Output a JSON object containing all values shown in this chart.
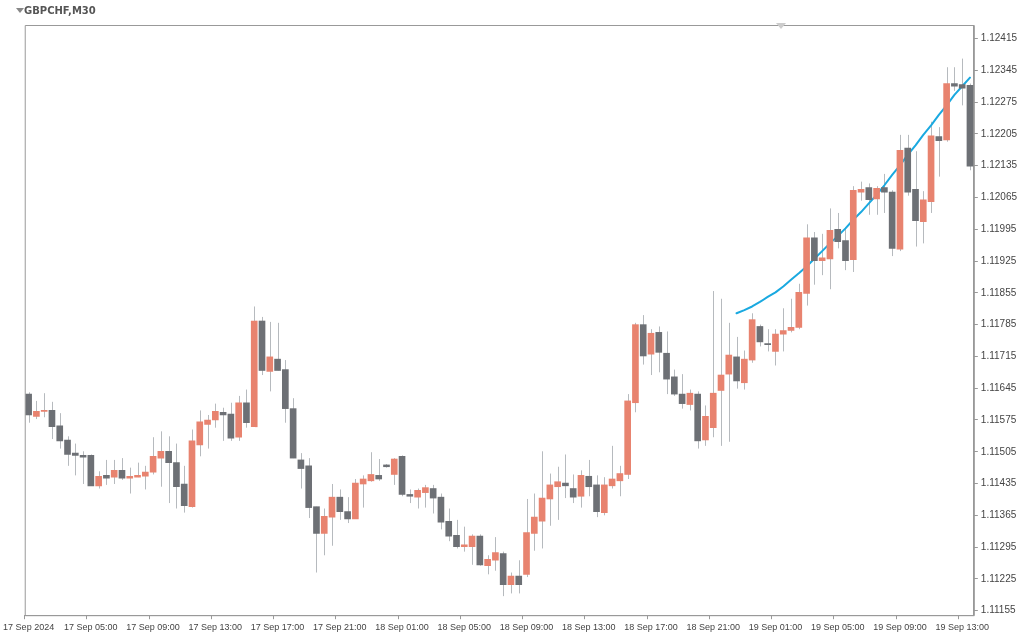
{
  "chart_data": {
    "type": "candlestick",
    "title": "GBPCHF,M30",
    "categories": [
      "17 Sep 2024",
      null,
      null,
      null,
      null,
      null,
      null,
      null,
      "17 Sep 05:00",
      null,
      null,
      null,
      null,
      null,
      null,
      null,
      "17 Sep 09:00",
      null,
      null,
      null,
      null,
      null,
      null,
      null,
      "17 Sep 13:00",
      null,
      null,
      null,
      null,
      null,
      null,
      null,
      "17 Sep 17:00",
      null,
      null,
      null,
      null,
      null,
      null,
      null,
      "17 Sep 21:00",
      null,
      null,
      null,
      null,
      null,
      null,
      null,
      "18 Sep 01:00",
      null,
      null,
      null,
      null,
      null,
      null,
      null,
      "18 Sep 05:00",
      null,
      null,
      null,
      null,
      null,
      null,
      null,
      "18 Sep 09:00",
      null,
      null,
      null,
      null,
      null,
      null,
      null,
      "18 Sep 13:00",
      null,
      null,
      null,
      null,
      null,
      null,
      null,
      "18 Sep 17:00",
      null,
      null,
      null,
      null,
      null,
      null,
      null,
      "18 Sep 21:00",
      null,
      null,
      null,
      null,
      null,
      null,
      null,
      "19 Sep 01:00",
      null,
      null,
      null,
      null,
      null,
      null,
      null,
      "19 Sep 05:00",
      null,
      null,
      null,
      null,
      null,
      null,
      null,
      "19 Sep 09:00",
      null,
      null,
      null,
      null,
      null,
      null,
      null,
      "19 Sep 13:00",
      null
    ],
    "ylim": [
      1.11145,
      1.12445
    ],
    "yticks": [
      1.11155,
      1.11225,
      1.11295,
      1.11365,
      1.11435,
      1.11505,
      1.11575,
      1.11645,
      1.11715,
      1.11785,
      1.11855,
      1.11925,
      1.11995,
      1.12065,
      1.12135,
      1.12205,
      1.12275,
      1.12345,
      1.12415
    ],
    "series": [
      {
        "color": "#b6babe",
        "colors": [
          "#6d7075",
          "#e8836f",
          "#e8836f",
          "#6d7075",
          "#6d7075",
          "#6d7075",
          "#6d7075",
          "#6d7075",
          "#6d7075",
          "#e8836f",
          "#6d7075",
          "#e8836f",
          "#6d7075",
          "#e8836f",
          "#e8836f",
          "#e8836f",
          "#e8836f",
          "#e8836f",
          "#6d7075",
          "#6d7075",
          "#6d7075",
          "#e8836f",
          "#e8836f",
          "#e8836f",
          "#e8836f",
          "#6d7075",
          "#6d7075",
          "#e8836f",
          "#6d7075",
          "#e8836f",
          "#6d7075",
          "#e8836f",
          "#6d7075",
          "#6d7075",
          "#6d7075",
          "#6d7075",
          "#6d7075",
          "#6d7075",
          "#e8836f",
          "#e8836f",
          "#6d7075",
          "#6d7075",
          "#e8836f",
          "#e8836f",
          "#e8836f",
          "#6d7075",
          "#6d7075",
          "#e8836f",
          "#6d7075",
          "#6d7075",
          "#e8836f",
          "#e8836f",
          "#6d7075",
          "#6d7075",
          "#6d7075",
          "#6d7075",
          "#e8836f",
          "#e8836f",
          "#6d7075",
          "#e8836f",
          "#e8836f",
          "#6d7075",
          "#e8836f",
          "#6d7075",
          "#e8836f",
          "#e8836f",
          "#e8836f",
          "#e8836f",
          "#e8836f",
          "#6d7075",
          "#6d7075",
          "#e8836f",
          "#6d7075",
          "#6d7075",
          "#e8836f",
          "#e8836f",
          "#e8836f",
          "#e8836f",
          "#e8836f",
          "#6d7075",
          "#e8836f",
          "#6d7075",
          "#6d7075",
          "#6d7075",
          "#6d7075",
          "#e8836f",
          "#6d7075",
          "#e8836f",
          "#e8836f",
          "#e8836f",
          "#e8836f",
          "#6d7075",
          "#e8836f",
          "#e8836f",
          "#6d7075",
          "#6d7075",
          "#e8836f",
          "#e8836f",
          "#e8836f",
          "#e8836f",
          "#e8836f",
          "#6d7075",
          "#e8836f",
          "#e8836f",
          "#6d7075",
          "#6d7075",
          "#e8836f",
          "#e8836f",
          "#6d7075",
          "#e8836f",
          "#6d7075",
          "#6d7075",
          "#e8836f",
          "#6d7075",
          "#6d7075",
          "#e8836f",
          "#e8836f",
          "#6d7075",
          "#e8836f",
          "#6d7075",
          "#6d7075",
          "#6d7075"
        ],
        "ohlc": [
          [
            1.11632,
            1.11636,
            1.11569,
            1.11586
          ],
          [
            1.11583,
            1.11617,
            1.11577,
            1.11594
          ],
          [
            1.11594,
            1.11634,
            1.11581,
            1.11596
          ],
          [
            1.11596,
            1.11615,
            1.11533,
            1.1156
          ],
          [
            1.11562,
            1.1159,
            1.11512,
            1.11529
          ],
          [
            1.11531,
            1.11539,
            1.11474,
            1.11499
          ],
          [
            1.11502,
            1.11523,
            1.11453,
            1.11497
          ],
          [
            1.11497,
            1.11506,
            1.11434,
            1.11493
          ],
          [
            1.11497,
            1.11499,
            1.1143,
            1.1143
          ],
          [
            1.1143,
            1.11462,
            1.11424,
            1.11451
          ],
          [
            1.11453,
            1.11487,
            1.11432,
            1.11447
          ],
          [
            1.11449,
            1.11487,
            1.11434,
            1.11464
          ],
          [
            1.11464,
            1.11491,
            1.11443,
            1.11447
          ],
          [
            1.11447,
            1.1147,
            1.11413,
            1.11451
          ],
          [
            1.11449,
            1.11481,
            1.11449,
            1.11453
          ],
          [
            1.11451,
            1.11474,
            1.11422,
            1.1146
          ],
          [
            1.1146,
            1.11537,
            1.11455,
            1.11495
          ],
          [
            1.11491,
            1.1155,
            1.11428,
            1.11506
          ],
          [
            1.11506,
            1.11539,
            1.11392,
            1.11481
          ],
          [
            1.11481,
            1.11523,
            1.1138,
            1.11428
          ],
          [
            1.11434,
            1.11474,
            1.11371,
            1.11386
          ],
          [
            1.11384,
            1.11554,
            1.11382,
            1.11529
          ],
          [
            1.1152,
            1.11596,
            1.11495,
            1.11571
          ],
          [
            1.11565,
            1.11586,
            1.11512,
            1.11575
          ],
          [
            1.11575,
            1.11611,
            1.11558,
            1.11594
          ],
          [
            1.11592,
            1.11602,
            1.11529,
            1.11586
          ],
          [
            1.11588,
            1.11613,
            1.11529,
            1.11535
          ],
          [
            1.11537,
            1.11628,
            1.11529,
            1.11613
          ],
          [
            1.11613,
            1.11642,
            1.11558,
            1.11569
          ],
          [
            1.1156,
            1.11825,
            1.1156,
            1.11793
          ],
          [
            1.11793,
            1.11802,
            1.11674,
            1.11684
          ],
          [
            1.11682,
            1.11791,
            1.11638,
            1.11714
          ],
          [
            1.11709,
            1.11789,
            1.11684,
            1.11684
          ],
          [
            1.11686,
            1.11707,
            1.11569,
            1.116
          ],
          [
            1.116,
            1.11623,
            1.11491,
            1.11491
          ],
          [
            1.11487,
            1.11502,
            1.11424,
            1.11468
          ],
          [
            1.11474,
            1.11491,
            1.11359,
            1.11382
          ],
          [
            1.11384,
            1.11384,
            1.11239,
            1.11325
          ],
          [
            1.11325,
            1.1138,
            1.11277,
            1.11363
          ],
          [
            1.11361,
            1.11434,
            1.11298,
            1.11405
          ],
          [
            1.11405,
            1.11422,
            1.11355,
            1.11373
          ],
          [
            1.11373,
            1.11405,
            1.11348,
            1.11357
          ],
          [
            1.11357,
            1.11445,
            1.11357,
            1.11436
          ],
          [
            1.11434,
            1.11453,
            1.11382,
            1.11445
          ],
          [
            1.11441,
            1.11504,
            1.11439,
            1.11455
          ],
          [
            1.11453,
            1.11489,
            1.11441,
            1.11445
          ],
          [
            1.11476,
            1.11478,
            1.1147,
            1.11472
          ],
          [
            1.11455,
            1.11491,
            1.11432,
            1.11489
          ],
          [
            1.11495,
            1.11497,
            1.11407,
            1.11411
          ],
          [
            1.11411,
            1.11422,
            1.11392,
            1.11407
          ],
          [
            1.11405,
            1.11424,
            1.1138,
            1.1142
          ],
          [
            1.11415,
            1.11432,
            1.11382,
            1.11426
          ],
          [
            1.11424,
            1.11432,
            1.11369,
            1.11403
          ],
          [
            1.11405,
            1.11413,
            1.11334,
            1.1135
          ],
          [
            1.11352,
            1.1138,
            1.11308,
            1.11319
          ],
          [
            1.11321,
            1.11355,
            1.11292,
            1.11296
          ],
          [
            1.11296,
            1.1134,
            1.11285,
            1.113
          ],
          [
            1.11296,
            1.11323,
            1.11256,
            1.11319
          ],
          [
            1.11319,
            1.11323,
            1.11254,
            1.11256
          ],
          [
            1.11254,
            1.11277,
            1.11235,
            1.11268
          ],
          [
            1.11266,
            1.11317,
            1.11243,
            1.11283
          ],
          [
            1.11281,
            1.11285,
            1.11187,
            1.11212
          ],
          [
            1.11212,
            1.11239,
            1.11193,
            1.11231
          ],
          [
            1.11231,
            1.11266,
            1.11193,
            1.11212
          ],
          [
            1.11235,
            1.11401,
            1.11229,
            1.11327
          ],
          [
            1.11325,
            1.11413,
            1.11287,
            1.11361
          ],
          [
            1.11352,
            1.11506,
            1.11292,
            1.11403
          ],
          [
            1.11401,
            1.11457,
            1.11342,
            1.11432
          ],
          [
            1.11428,
            1.11472,
            1.11355,
            1.11439
          ],
          [
            1.11436,
            1.11499,
            1.11403,
            1.1143
          ],
          [
            1.11424,
            1.11455,
            1.11392,
            1.11405
          ],
          [
            1.11407,
            1.11464,
            1.11382,
            1.11453
          ],
          [
            1.11451,
            1.11487,
            1.11407,
            1.11428
          ],
          [
            1.11432,
            1.11453,
            1.11361,
            1.11373
          ],
          [
            1.11371,
            1.11449,
            1.11365,
            1.11432
          ],
          [
            1.1143,
            1.11518,
            1.11424,
            1.11445
          ],
          [
            1.11441,
            1.11474,
            1.11407,
            1.11457
          ],
          [
            1.11455,
            1.11632,
            1.11445,
            1.11617
          ],
          [
            1.11613,
            1.11789,
            1.11592,
            1.11785
          ],
          [
            1.11785,
            1.11806,
            1.11697,
            1.11716
          ],
          [
            1.1172,
            1.11775,
            1.11674,
            1.11766
          ],
          [
            1.11768,
            1.11781,
            1.1168,
            1.11724
          ],
          [
            1.11722,
            1.1177,
            1.11632,
            1.11665
          ],
          [
            1.1167,
            1.11686,
            1.11628,
            1.11632
          ],
          [
            1.11632,
            1.11676,
            1.116,
            1.11611
          ],
          [
            1.11609,
            1.11642,
            1.11596,
            1.11634
          ],
          [
            1.11632,
            1.11638,
            1.11512,
            1.11529
          ],
          [
            1.11531,
            1.11607,
            1.11518,
            1.11583
          ],
          [
            1.11558,
            1.11859,
            1.11537,
            1.11634
          ],
          [
            1.1164,
            1.11842,
            1.11518,
            1.11674
          ],
          [
            1.11676,
            1.11789,
            1.11527,
            1.11718
          ],
          [
            1.11714,
            1.11758,
            1.11644,
            1.11661
          ],
          [
            1.11657,
            1.11728,
            1.11642,
            1.11709
          ],
          [
            1.11707,
            1.1181,
            1.11701,
            1.11796
          ],
          [
            1.11781,
            1.11785,
            1.11737,
            1.11747
          ],
          [
            1.11743,
            1.11775,
            1.11726,
            1.11741
          ],
          [
            1.11726,
            1.11775,
            1.11695,
            1.11764
          ],
          [
            1.11764,
            1.11821,
            1.11726,
            1.11772
          ],
          [
            1.11772,
            1.11842,
            1.11768,
            1.11779
          ],
          [
            1.11779,
            1.11875,
            1.11775,
            1.11856
          ],
          [
            1.11854,
            1.12006,
            1.11827,
            1.11976
          ],
          [
            1.11976,
            1.11989,
            1.11873,
            1.11926
          ],
          [
            1.11926,
            1.11985,
            1.11894,
            1.11932
          ],
          [
            1.1193,
            1.12041,
            1.11863,
            1.11993
          ],
          [
            1.11995,
            1.12031,
            1.11953,
            1.11968
          ],
          [
            1.1197,
            1.11999,
            1.11905,
            1.11926
          ],
          [
            1.11928,
            1.1209,
            1.11901,
            1.12081
          ],
          [
            1.12077,
            1.121,
            1.12058,
            1.12083
          ],
          [
            1.12087,
            1.12096,
            1.12027,
            1.1206
          ],
          [
            1.12062,
            1.1209,
            1.12027,
            1.12085
          ],
          [
            1.12087,
            1.12117,
            1.12031,
            1.12077
          ],
          [
            1.12077,
            1.12081,
            1.11936,
            1.11953
          ],
          [
            1.11951,
            1.12203,
            1.11947,
            1.12169
          ],
          [
            1.12174,
            1.12203,
            1.12069,
            1.12077
          ],
          [
            1.12083,
            1.12167,
            1.11957,
            1.12014
          ],
          [
            1.12012,
            1.12079,
            1.11964,
            1.1206
          ],
          [
            1.12056,
            1.12232,
            1.12031,
            1.12201
          ],
          [
            1.12199,
            1.1222,
            1.12111,
            1.1219
          ],
          [
            1.12192,
            1.12352,
            1.12188,
            1.12316
          ],
          [
            1.12316,
            1.12352,
            1.123,
            1.1231
          ],
          [
            1.12314,
            1.12371,
            1.12268,
            1.12306
          ],
          [
            1.12312,
            1.12316,
            1.12125,
            1.12134
          ]
        ]
      },
      {
        "type": "line",
        "color": "#1aa9e0",
        "values": [
          null,
          null,
          null,
          null,
          null,
          null,
          null,
          null,
          null,
          null,
          null,
          null,
          null,
          null,
          null,
          null,
          null,
          null,
          null,
          null,
          null,
          null,
          null,
          null,
          null,
          null,
          null,
          null,
          null,
          null,
          null,
          null,
          null,
          null,
          null,
          null,
          null,
          null,
          null,
          null,
          null,
          null,
          null,
          null,
          null,
          null,
          null,
          null,
          null,
          null,
          null,
          null,
          null,
          null,
          null,
          null,
          null,
          null,
          null,
          null,
          null,
          null,
          null,
          null,
          null,
          null,
          null,
          null,
          null,
          null,
          null,
          null,
          null,
          null,
          null,
          null,
          null,
          null,
          null,
          null,
          null,
          null,
          null,
          null,
          null,
          null,
          null,
          null,
          null,
          null,
          null,
          1.1181,
          1.11817,
          1.11825,
          1.11835,
          1.11846,
          1.11856,
          1.11869,
          1.11884,
          1.11898,
          1.11913,
          1.1193,
          1.11947,
          1.11964,
          1.1198,
          1.11997,
          1.12016,
          1.12033,
          1.12052,
          1.12071,
          1.12092,
          1.12115,
          1.12136,
          1.12159,
          1.1218,
          1.12203,
          1.12224,
          1.12247,
          1.12268,
          1.12291,
          1.1231,
          1.12329
        ]
      }
    ]
  }
}
